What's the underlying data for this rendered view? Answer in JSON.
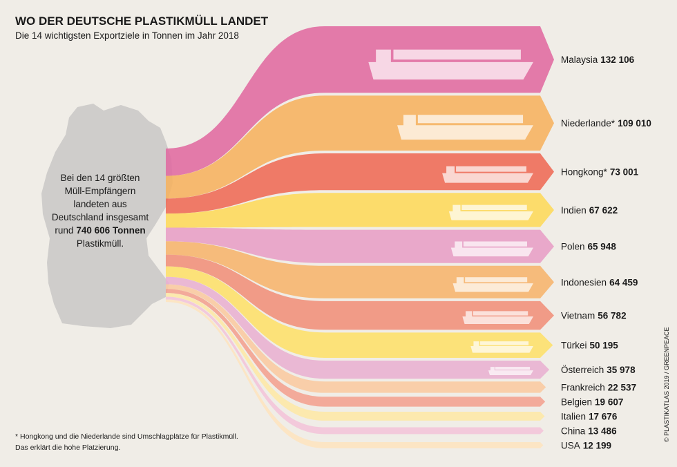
{
  "chart_data": {
    "type": "flow",
    "title": "WO DER DEUTSCHE PLASTIKMÜLL LANDET",
    "subtitle": "Die 14 wichtigsten Exportziele in Tonnen im Jahr 2018",
    "annotation_lines": [
      "Bei den 14 größten",
      "Müll-Empfängern",
      "landeten aus",
      "Deutschland insgesamt",
      "rund"
    ],
    "annotation_bold": "740 606 Tonnen",
    "annotation_end": "Plastikmüll.",
    "footnote": [
      "* Hongkong und die Niederlande sind Umschlagplätze für Plastikmüll.",
      "Das erklärt die hohe Platzierung."
    ],
    "credit": "© PLASTIKATLAS 2019 / GREENPEACE",
    "categories": [
      "Malaysia",
      "Niederlande*",
      "Hongkong*",
      "Indien",
      "Polen",
      "Indonesien",
      "Vietnam",
      "Türkei",
      "Österreich",
      "Frankreich",
      "Belgien",
      "Italien",
      "China",
      "USA"
    ],
    "values": [
      132106,
      109010,
      73001,
      67622,
      65948,
      64459,
      56782,
      50195,
      35978,
      22537,
      19607,
      17676,
      13486,
      12199
    ],
    "value_labels": [
      "132 106",
      "109 010",
      "73 001",
      "67 622",
      "65 948",
      "64 459",
      "56 782",
      "50 195",
      "35 978",
      "22 537",
      "19 607",
      "17 676",
      "13 486",
      "12 199"
    ],
    "colors": [
      "#e06aa0",
      "#f6b25e",
      "#ee6a55",
      "#fdd95a",
      "#e79ec6",
      "#f6b46c",
      "#f0907a",
      "#fde06a",
      "#e8b0d2",
      "#f9c9a0",
      "#f3a08f",
      "#fde8a6",
      "#f2c4da",
      "#fde4bf"
    ]
  }
}
